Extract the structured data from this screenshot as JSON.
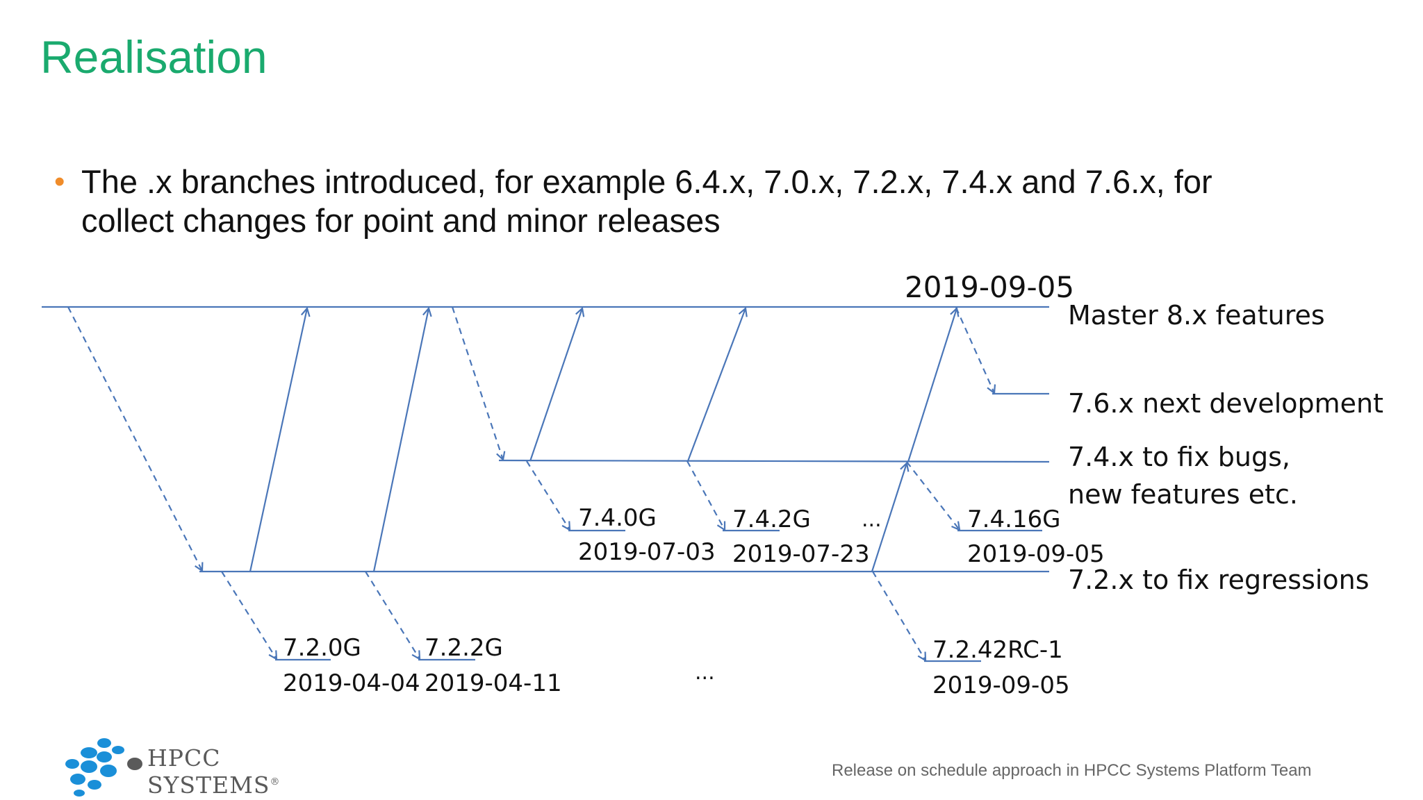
{
  "slide": {
    "title": "Realisation",
    "bullet_line1": "The .x branches introduced, for example 6.4.x, 7.0.x, 7.2.x, 7.4.x and 7.6.x, for",
    "bullet_line2": "collect changes for point and minor releases"
  },
  "diagram": {
    "top_date": "2019-09-05",
    "branches": {
      "master": "Master 8.x features",
      "b76": "7.6.x next development",
      "b74_line1": "7.4.x to fix bugs,",
      "b74_line2": "new features etc.",
      "b72": "7.2.x to fix regressions"
    },
    "releases_74": [
      {
        "version": "7.4.0G",
        "date": "2019-07-03"
      },
      {
        "version": "7.4.2G",
        "date": "2019-07-23"
      },
      {
        "version": "7.4.16G",
        "date": "2019-09-05"
      }
    ],
    "releases_72": [
      {
        "version": "7.2.0G",
        "date": "2019-04-04"
      },
      {
        "version": "7.2.2G",
        "date": "2019-04-11"
      },
      {
        "version": "7.2.42RC-1",
        "date": "2019-09-05"
      }
    ],
    "ellipsis": "..."
  },
  "colors": {
    "line": "#4a76b8",
    "title": "#1aaa6e",
    "bullet": "#f08c2a",
    "logo_blue": "#1a8fd8",
    "logo_grey": "#5a5a5a"
  },
  "footer": {
    "logo_text": "HPCC SYSTEMS",
    "logo_mark": "®",
    "caption": "Release on schedule approach in HPCC Systems Platform Team"
  }
}
